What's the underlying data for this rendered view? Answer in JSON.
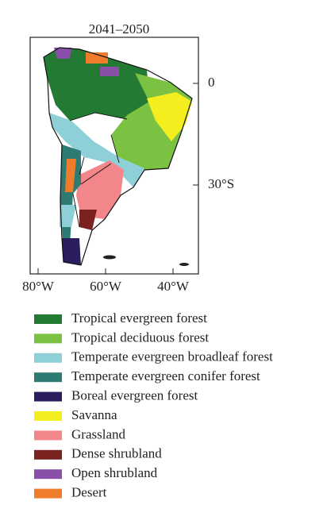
{
  "title": "2041–2050",
  "x_ticks": [
    "80°W",
    "60°W",
    "40°W"
  ],
  "y_ticks": [
    "0",
    "30°S"
  ],
  "legend": [
    {
      "label": "Tropical evergreen forest",
      "color": "#227a33"
    },
    {
      "label": "Tropical deciduous forest",
      "color": "#7cc242"
    },
    {
      "label": "Temperate evergreen broadleaf forest",
      "color": "#8fd0d8"
    },
    {
      "label": "Temperate evergreen conifer forest",
      "color": "#2e7b73"
    },
    {
      "label": "Boreal evergreen forest",
      "color": "#2b1d5e"
    },
    {
      "label": "Savanna",
      "color": "#f5ee1f"
    },
    {
      "label": "Grassland",
      "color": "#f2868a"
    },
    {
      "label": "Dense shrubland",
      "color": "#7a2220"
    },
    {
      "label": "Open shrubland",
      "color": "#8a4fa8"
    },
    {
      "label": "Desert",
      "color": "#ef7c2a"
    }
  ]
}
